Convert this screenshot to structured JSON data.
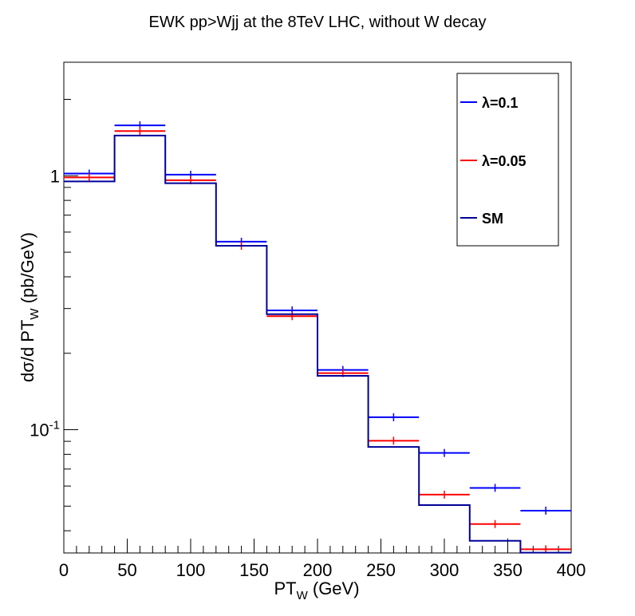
{
  "chart_data": {
    "type": "step",
    "title": "EWK pp>Wjj at the 8TeV LHC, without W decay",
    "xlabel": {
      "main": "PT",
      "sub": "W",
      "unit": " (GeV)"
    },
    "ylabel": {
      "main": "dσ/d PT",
      "sub": "W",
      "unit": " (pb/GeV)"
    },
    "xlim": [
      0,
      400
    ],
    "ylim": [
      0.0327,
      2.8
    ],
    "yscale": "log",
    "grid": false,
    "legend_position": "top-right",
    "x_ticks": [
      0,
      50,
      100,
      150,
      200,
      250,
      300,
      350,
      400
    ],
    "x_tick_labels": [
      "0",
      "50",
      "100",
      "150",
      "200",
      "250",
      "300",
      "350",
      "400"
    ],
    "y_tick_labels": [
      {
        "value": 1,
        "text": "1"
      },
      {
        "value": 0.1,
        "base": "10",
        "exp": "-1"
      }
    ],
    "bin_edges": [
      0,
      40,
      80,
      120,
      160,
      200,
      240,
      280,
      320,
      360,
      400
    ],
    "series": [
      {
        "name": "λ=0.1",
        "color": "#0000ff",
        "style": "error-bar",
        "values": [
          1.02,
          1.58,
          1.01,
          0.55,
          0.295,
          0.172,
          0.112,
          0.081,
          0.059,
          0.048
        ]
      },
      {
        "name": "λ=0.05",
        "color": "#ff0000",
        "style": "error-bar",
        "values": [
          0.985,
          1.5,
          0.96,
          0.53,
          0.28,
          0.167,
          0.0905,
          0.0555,
          0.0425,
          0.0338
        ]
      },
      {
        "name": "SM",
        "color": "#000099",
        "style": "histogram",
        "values": [
          0.95,
          1.44,
          0.935,
          0.53,
          0.285,
          0.163,
          0.0855,
          0.0505,
          0.0365,
          0.0328
        ]
      }
    ]
  }
}
